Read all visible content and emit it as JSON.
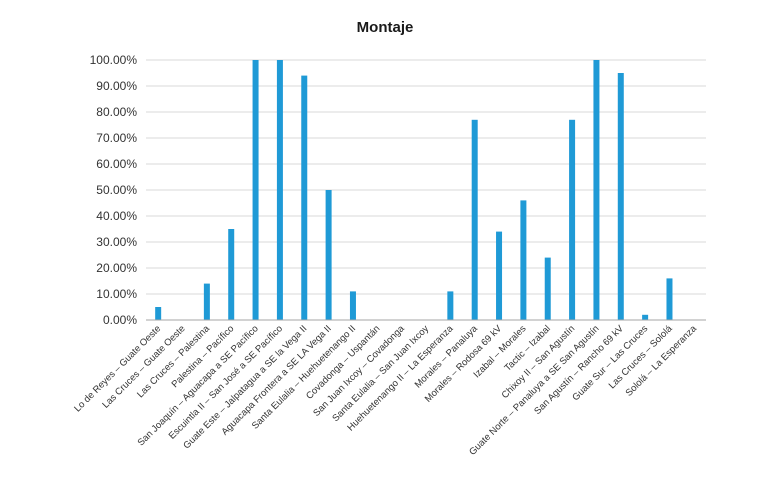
{
  "chart_data": {
    "type": "bar",
    "title": "Montaje",
    "xlabel": "",
    "ylabel": "",
    "ylim": [
      0,
      1
    ],
    "yticks": [
      "0.00%",
      "10.00%",
      "20.00%",
      "30.00%",
      "40.00%",
      "50.00%",
      "60.00%",
      "70.00%",
      "80.00%",
      "90.00%",
      "100.00%"
    ],
    "grid": true,
    "legend": "none",
    "bar_color": "#1f9ad6",
    "categories": [
      "Lo de Reyes – Guate Oeste",
      "Las Cruces – Guate Oeste",
      "Las Cruces – Palestina",
      "Palestina – Pacífico",
      "San Joaquín – Aguacapa a SE Pacífico",
      "Escuintla II – San José a SE Pacífico",
      "Guate Este – Jalpatagua a SE la Vega II",
      "Aguacapa Frontera a SE LA Vega II",
      "Santa Eulalia – Huehuetenango II",
      "Covadonga – Uspantán",
      "San Juan Ixcoy – Covadonga",
      "Santa Eulalia – San Juan Ixcoy",
      "Huehuetenango II – La Esperanza",
      "Morales – Panaluya",
      "Morales – Rodosa 69 kV",
      "Izabal – Morales",
      "Tactic – Izabal",
      "Chixoy II – San Agustín",
      "Guate Norte – Panaluya a SE San Agustín",
      "San Agustín – Rancho 69 kV",
      "Guate Sur – Las Cruces",
      "Las Cruces – Sololá",
      "Sololá – La Esperanza"
    ],
    "values": [
      0.05,
      0.0,
      0.14,
      0.35,
      1.0,
      1.0,
      0.94,
      0.5,
      0.11,
      0.0,
      0.0,
      0.0,
      0.11,
      0.77,
      0.34,
      0.46,
      0.24,
      0.77,
      1.0,
      0.95,
      0.02,
      0.16,
      0.0
    ]
  }
}
